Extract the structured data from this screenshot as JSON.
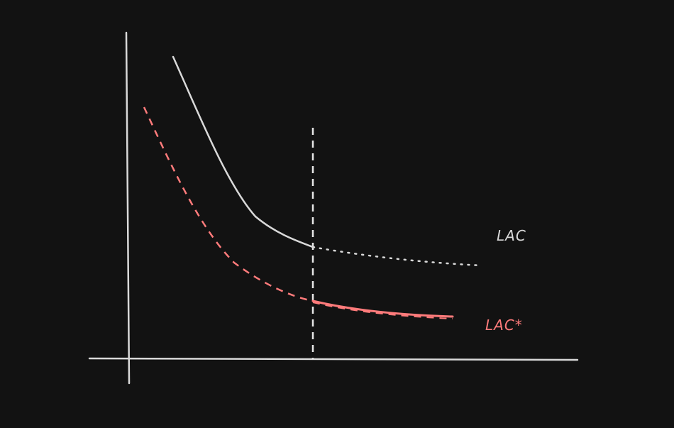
{
  "diagram": {
    "labels": {
      "lac": "LAC",
      "lac_star": "LAC*"
    },
    "colors": {
      "background": "#121212",
      "axis": "#d9d9d9",
      "lac_curve": "#d9d9d9",
      "lac_star_curve": "#ff7b7b",
      "divider": "#e6e6e6"
    }
  }
}
